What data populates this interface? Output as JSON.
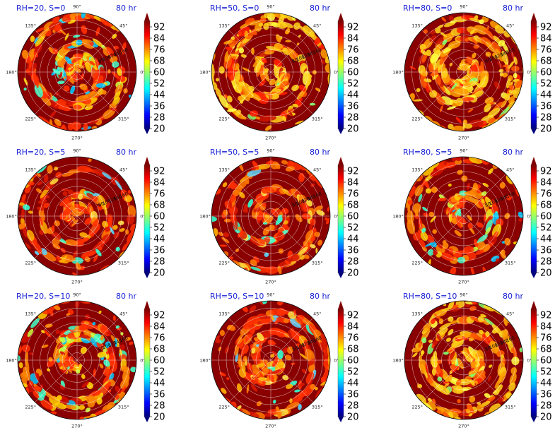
{
  "chart_data": {
    "type": "polar-contour-grid",
    "valid_time": "80 hr",
    "colorbar": {
      "ticks": [
        "92",
        "84",
        "76",
        "68",
        "60",
        "52",
        "44",
        "36",
        "28",
        "20"
      ],
      "range": [
        20,
        96
      ],
      "colors": [
        "#00007f",
        "#0000ff",
        "#007fff",
        "#00ffff",
        "#7fff7f",
        "#ffff00",
        "#ff7f00",
        "#ff0000",
        "#7f0000"
      ]
    },
    "angular_ticks": [
      "90°",
      "45°",
      "0°",
      "315°",
      "270°",
      "225°",
      "180°",
      "135°"
    ],
    "radial_ticks": [
      "80",
      "100",
      "120",
      "140",
      "160"
    ],
    "panels": [
      {
        "label": "RH=20, S=0",
        "time": "80 hr",
        "seed": 1,
        "theme": "low"
      },
      {
        "label": "RH=50, S=0",
        "time": "80 hr",
        "seed": 2,
        "theme": "bright"
      },
      {
        "label": "RH=80, S=0",
        "time": "80 hr",
        "seed": 3,
        "theme": "bright"
      },
      {
        "label": "RH=20, S=5",
        "time": "80 hr",
        "seed": 4,
        "theme": "dark"
      },
      {
        "label": "RH=50, S=5",
        "time": "80 hr",
        "seed": 5,
        "theme": "dark"
      },
      {
        "label": "RH=80, S=5",
        "time": "80 hr",
        "seed": 6,
        "theme": "low"
      },
      {
        "label": "RH=20, S=10",
        "time": "80 hr",
        "seed": 7,
        "theme": "low"
      },
      {
        "label": "RH=50, S=10",
        "time": "80 hr",
        "seed": 8,
        "theme": "dark"
      },
      {
        "label": "RH=80, S=10",
        "time": "80 hr",
        "seed": 9,
        "theme": "bright"
      }
    ]
  }
}
